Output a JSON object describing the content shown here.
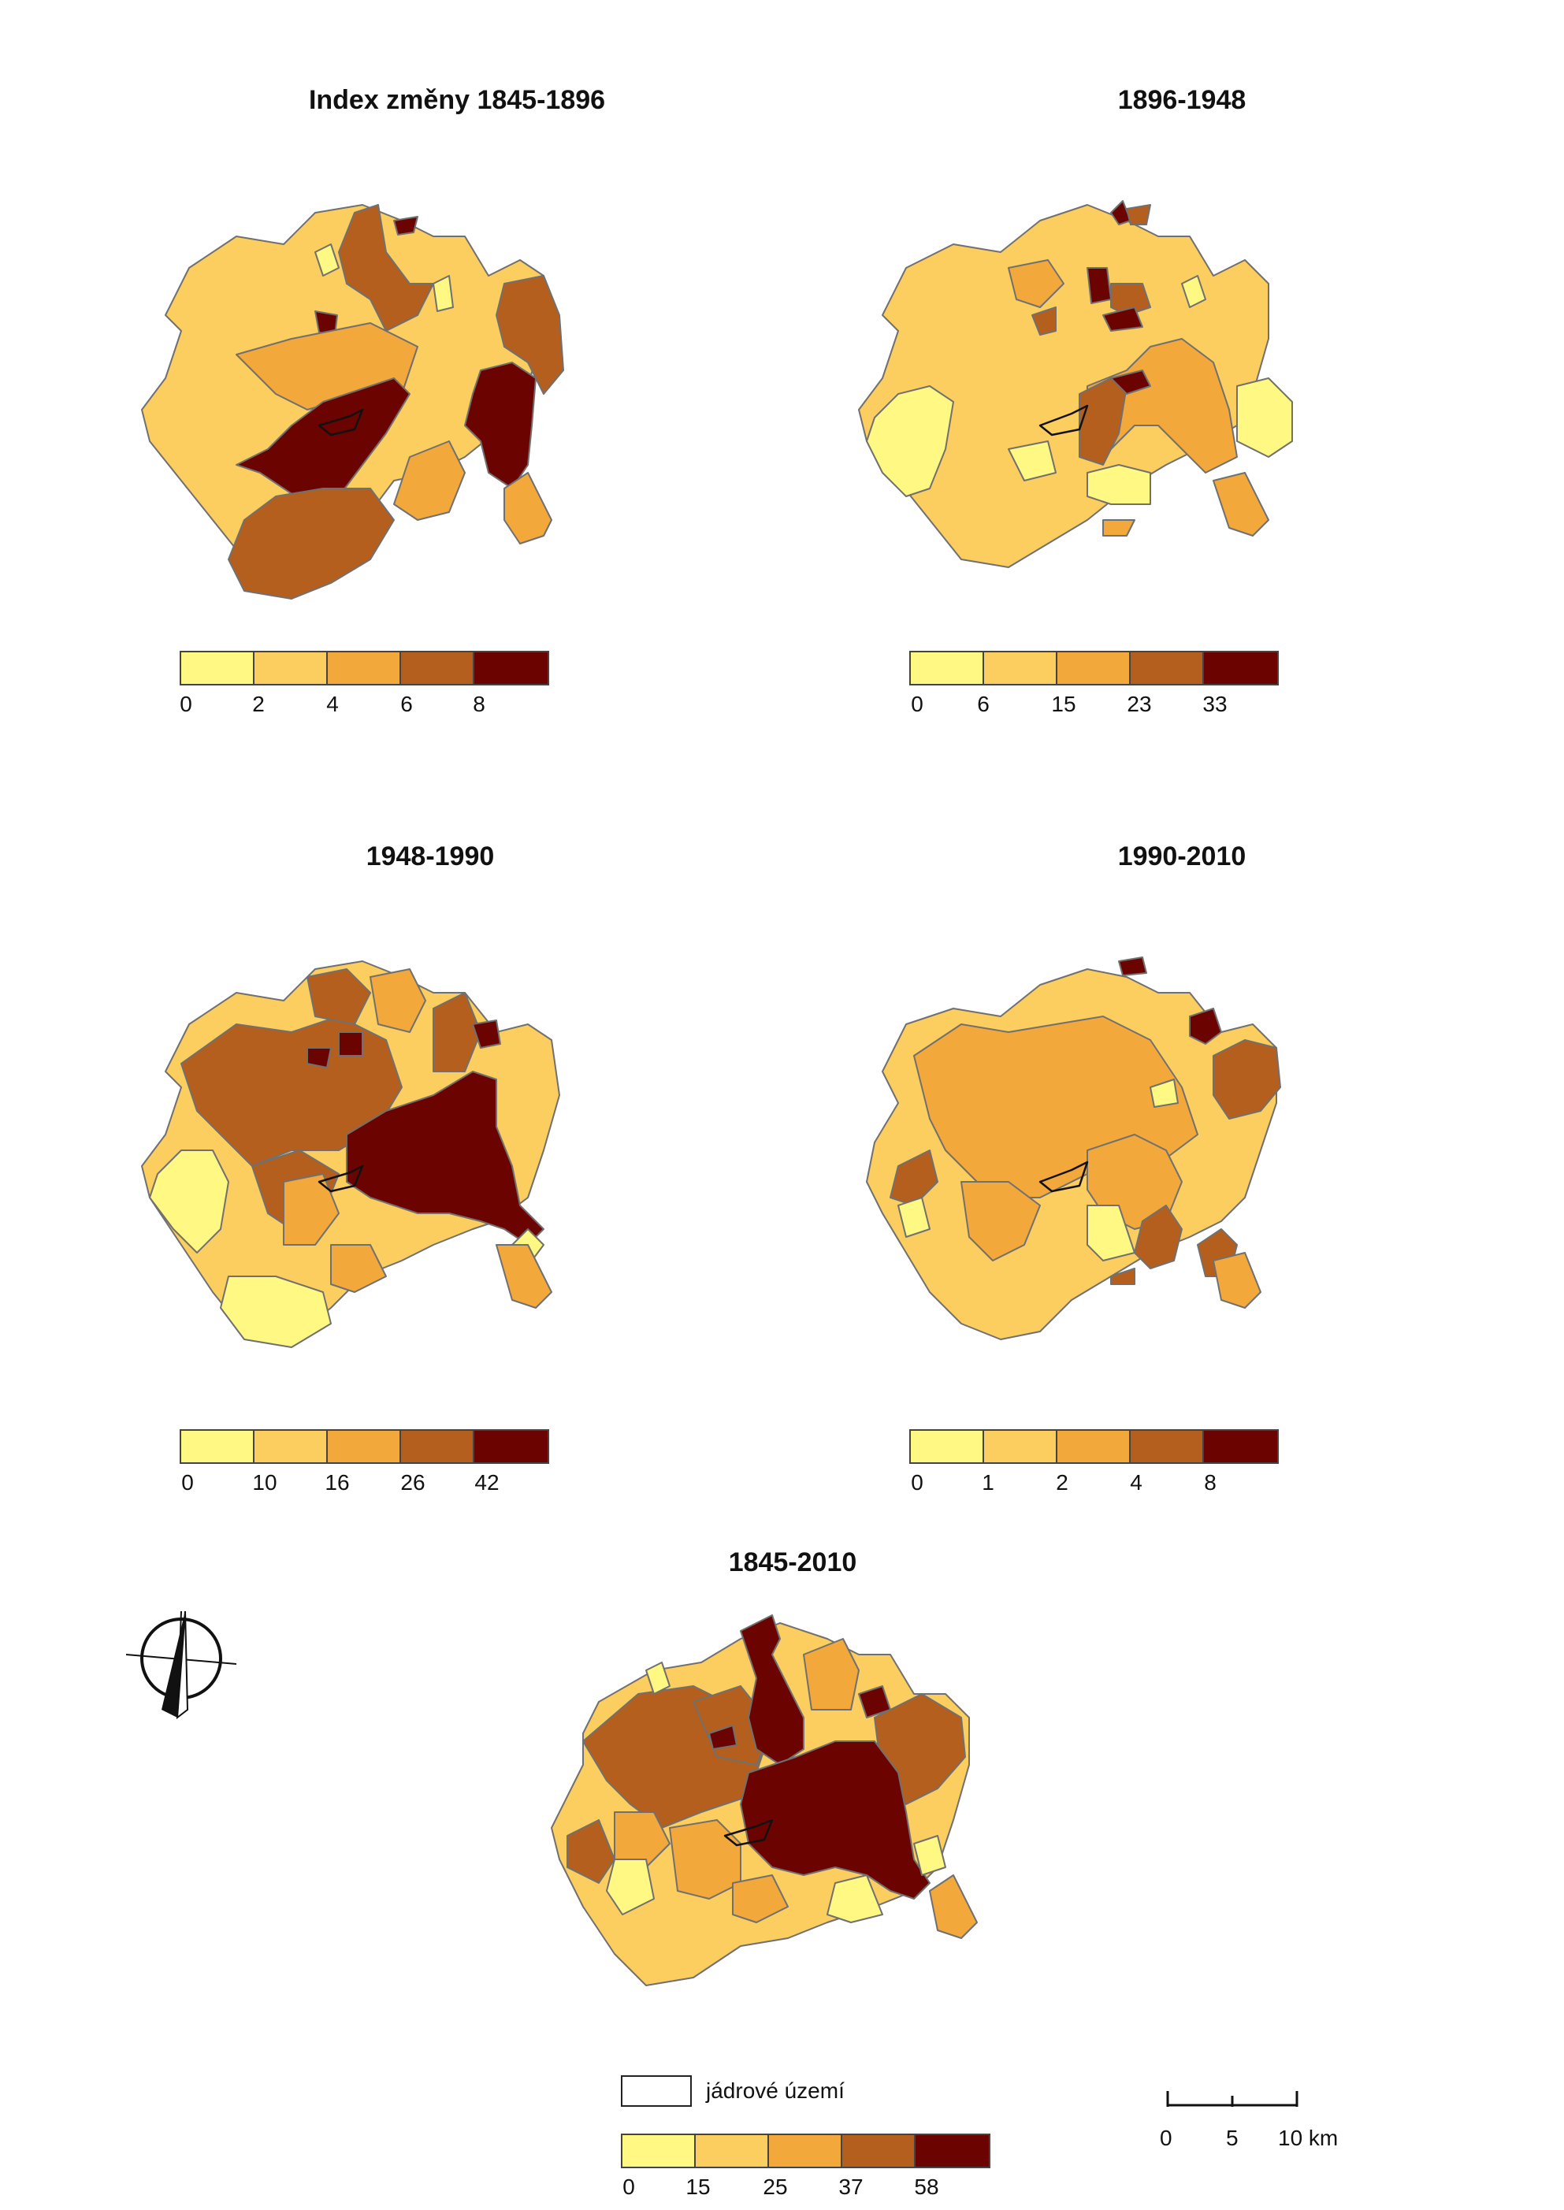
{
  "colors": {
    "c1": "#FFF983",
    "c2": "#FCCD5F",
    "c3": "#F2A83B",
    "c4": "#B45F1E",
    "c5": "#6B0300",
    "border": "#707070",
    "core_outline": "#111111"
  },
  "panels": [
    {
      "title": "Index změny 1845-1896",
      "ticks": [
        "0",
        "2",
        "4",
        "6",
        "8"
      ]
    },
    {
      "title": "1896-1948",
      "ticks": [
        "0",
        "6",
        "15",
        "23",
        "33"
      ]
    },
    {
      "title": "1948-1990",
      "ticks": [
        "0",
        "10",
        "16",
        "26",
        "42"
      ]
    },
    {
      "title": "1990-2010",
      "ticks": [
        "0",
        "1",
        "2",
        "4",
        "8"
      ]
    },
    {
      "title": "1845-2010",
      "ticks": [
        "0",
        "15",
        "25",
        "37",
        "58"
      ]
    }
  ],
  "core_legend": {
    "label": "jádrové území"
  },
  "scalebar": {
    "labels": [
      "0",
      "5",
      "10 km"
    ]
  },
  "north_arrow": {
    "icon": "north-arrow-icon"
  }
}
